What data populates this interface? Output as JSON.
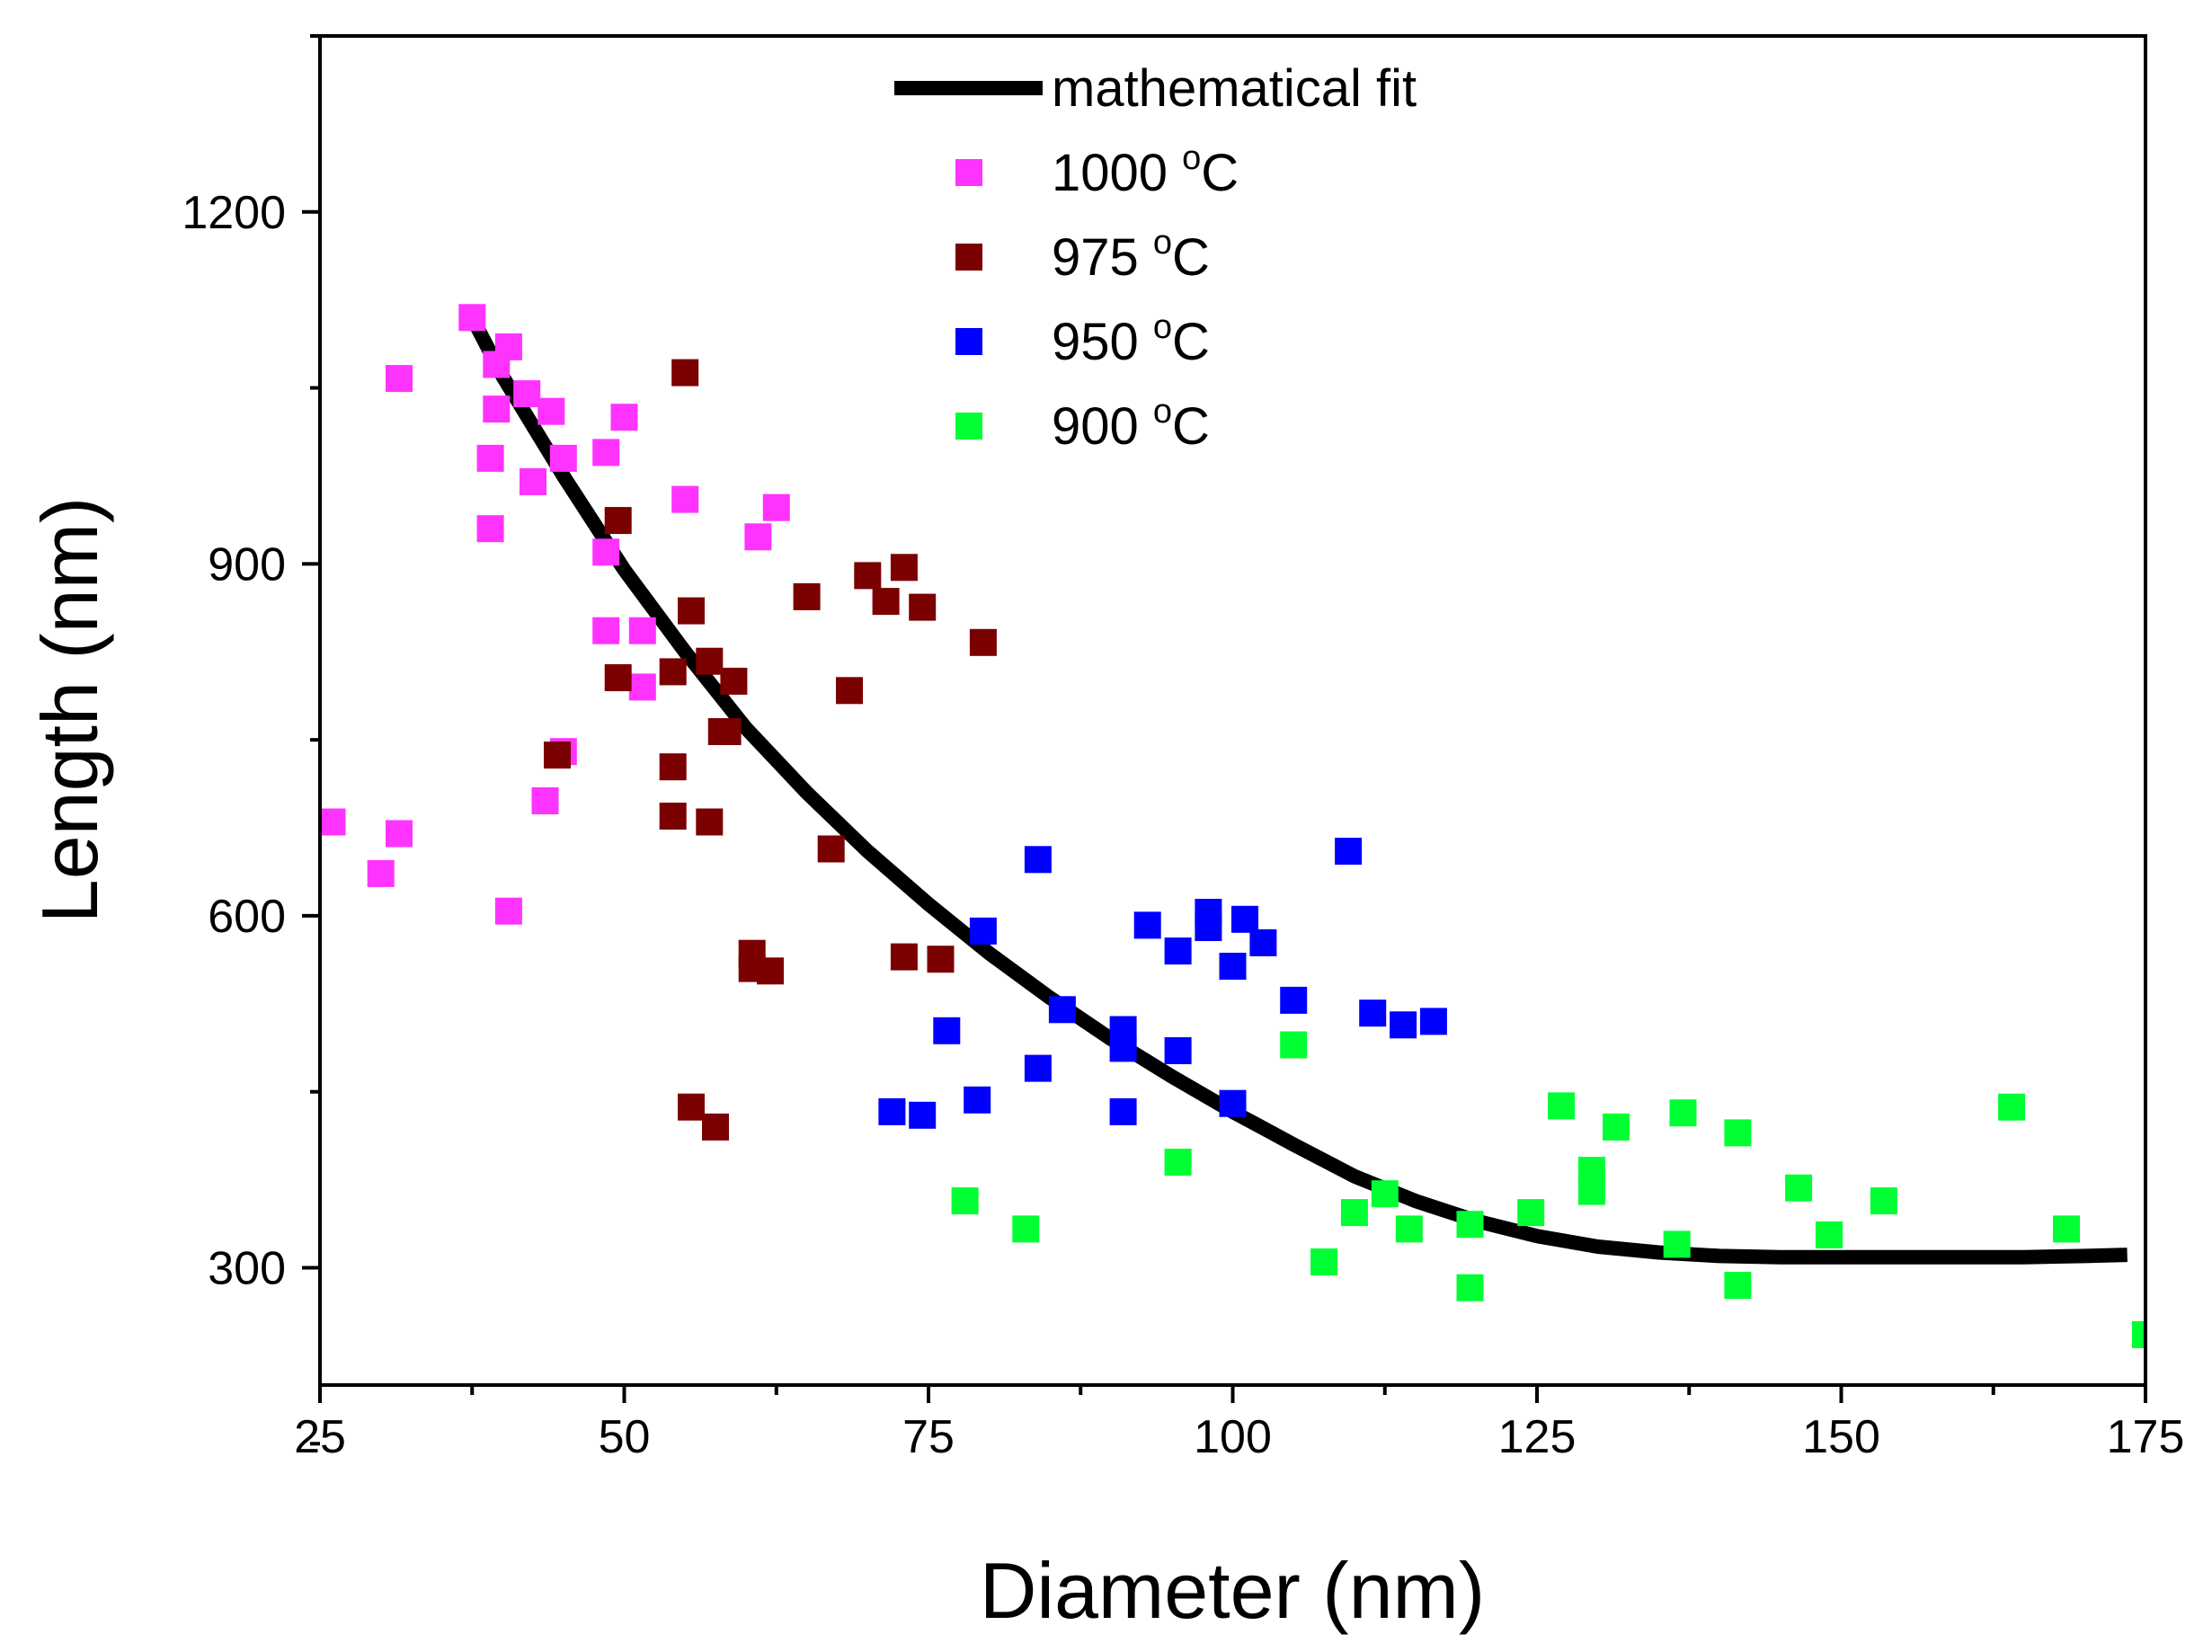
{
  "chart_data": {
    "type": "scatter",
    "title": "",
    "xlabel": "Diameter (nm)",
    "ylabel": "Length (nm)",
    "xlim": [
      25,
      175
    ],
    "ylim": [
      200,
      1350
    ],
    "xticks": [
      25,
      50,
      75,
      100,
      125,
      150,
      175
    ],
    "yticks": [
      300,
      600,
      900,
      1200
    ],
    "grid": false,
    "legend_position": "top-center",
    "fit": {
      "name": "mathematical fit",
      "color": "#000000",
      "points": [
        [
          37.5,
          1110
        ],
        [
          40,
          1060
        ],
        [
          45,
          975
        ],
        [
          50,
          895
        ],
        [
          55,
          825
        ],
        [
          60,
          760
        ],
        [
          65,
          705
        ],
        [
          70,
          655
        ],
        [
          75,
          610
        ],
        [
          80,
          568
        ],
        [
          85,
          530
        ],
        [
          90,
          495
        ],
        [
          95,
          463
        ],
        [
          100,
          433
        ],
        [
          105,
          405
        ],
        [
          110,
          378
        ],
        [
          115,
          357
        ],
        [
          120,
          340
        ],
        [
          125,
          327
        ],
        [
          130,
          318
        ],
        [
          135,
          313
        ],
        [
          140,
          310
        ],
        [
          145,
          309
        ],
        [
          150,
          309
        ],
        [
          155,
          309
        ],
        [
          160,
          309
        ],
        [
          165,
          309
        ],
        [
          170,
          310
        ],
        [
          173.5,
          311
        ]
      ]
    },
    "series": [
      {
        "name": "1000 °C",
        "label_main": "1000 ",
        "label_sup": "o",
        "label_unit": "C",
        "color": "#ff33ff",
        "points": [
          [
            26,
            680
          ],
          [
            30,
            636
          ],
          [
            31.5,
            670
          ],
          [
            31.5,
            1058
          ],
          [
            37.5,
            1110
          ],
          [
            39.5,
            1070
          ],
          [
            40.5,
            1085
          ],
          [
            39.5,
            1032
          ],
          [
            39,
            990
          ],
          [
            39,
            930
          ],
          [
            42,
            1045
          ],
          [
            44,
            1030
          ],
          [
            42.5,
            970
          ],
          [
            45,
            990
          ],
          [
            48.5,
            995
          ],
          [
            50,
            1025
          ],
          [
            48.5,
            910
          ],
          [
            48.5,
            843
          ],
          [
            51.5,
            843
          ],
          [
            51.5,
            795
          ],
          [
            45,
            740
          ],
          [
            43.5,
            698
          ],
          [
            40.5,
            604
          ],
          [
            55,
            955
          ],
          [
            61,
            923
          ],
          [
            62.5,
            948
          ]
        ]
      },
      {
        "name": "975 °C",
        "label_main": "975 ",
        "label_sup": "o",
        "label_unit": "C",
        "color": "#7b0000",
        "points": [
          [
            55,
            1063
          ],
          [
            49.5,
            937
          ],
          [
            49.5,
            803
          ],
          [
            54,
            808
          ],
          [
            55.5,
            860
          ],
          [
            57,
            817
          ],
          [
            59,
            800
          ],
          [
            58,
            757
          ],
          [
            58.5,
            757
          ],
          [
            54,
            727
          ],
          [
            54,
            685
          ],
          [
            57,
            680
          ],
          [
            44.5,
            737
          ],
          [
            60.5,
            568
          ],
          [
            60.5,
            555
          ],
          [
            62,
            553
          ],
          [
            55.5,
            437
          ],
          [
            57.5,
            420
          ],
          [
            65,
            872
          ],
          [
            70,
            890
          ],
          [
            71.5,
            868
          ],
          [
            73,
            897
          ],
          [
            74.5,
            863
          ],
          [
            79.5,
            833
          ],
          [
            68.5,
            792
          ],
          [
            67,
            657
          ],
          [
            73,
            565
          ],
          [
            76,
            563
          ]
        ]
      },
      {
        "name": "950 °C",
        "label_main": "950 ",
        "label_sup": "o",
        "label_unit": "C",
        "color": "#0000ff",
        "points": [
          [
            72,
            433
          ],
          [
            74.5,
            430
          ],
          [
            76.5,
            502
          ],
          [
            79,
            443
          ],
          [
            79.5,
            587
          ],
          [
            84,
            648
          ],
          [
            84,
            470
          ],
          [
            86,
            520
          ],
          [
            91,
            503
          ],
          [
            91,
            487
          ],
          [
            91,
            433
          ],
          [
            93,
            592
          ],
          [
            95.5,
            570
          ],
          [
            95.5,
            485
          ],
          [
            98,
            603
          ],
          [
            98,
            590
          ],
          [
            100,
            557
          ],
          [
            100,
            440
          ],
          [
            101,
            597
          ],
          [
            102.5,
            577
          ],
          [
            105,
            528
          ],
          [
            109.5,
            655
          ],
          [
            111.5,
            517
          ],
          [
            114,
            507
          ],
          [
            116.5,
            510
          ]
        ]
      },
      {
        "name": "900 °C",
        "label_main": "900 ",
        "label_sup": "o",
        "label_unit": "C",
        "color": "#00ff33",
        "points": [
          [
            78,
            357
          ],
          [
            83,
            333
          ],
          [
            95.5,
            390
          ],
          [
            105,
            490
          ],
          [
            107.5,
            305
          ],
          [
            110,
            347
          ],
          [
            112.5,
            363
          ],
          [
            114.5,
            333
          ],
          [
            119.5,
            337
          ],
          [
            119.5,
            283
          ],
          [
            124.5,
            347
          ],
          [
            127,
            438
          ],
          [
            129.5,
            383
          ],
          [
            129.5,
            365
          ],
          [
            131.5,
            420
          ],
          [
            136.5,
            320
          ],
          [
            137,
            432
          ],
          [
            141.5,
            415
          ],
          [
            141.5,
            285
          ],
          [
            146.5,
            368
          ],
          [
            149,
            328
          ],
          [
            153.5,
            357
          ],
          [
            164,
            437
          ],
          [
            168.5,
            333
          ],
          [
            175,
            243
          ]
        ]
      }
    ]
  }
}
